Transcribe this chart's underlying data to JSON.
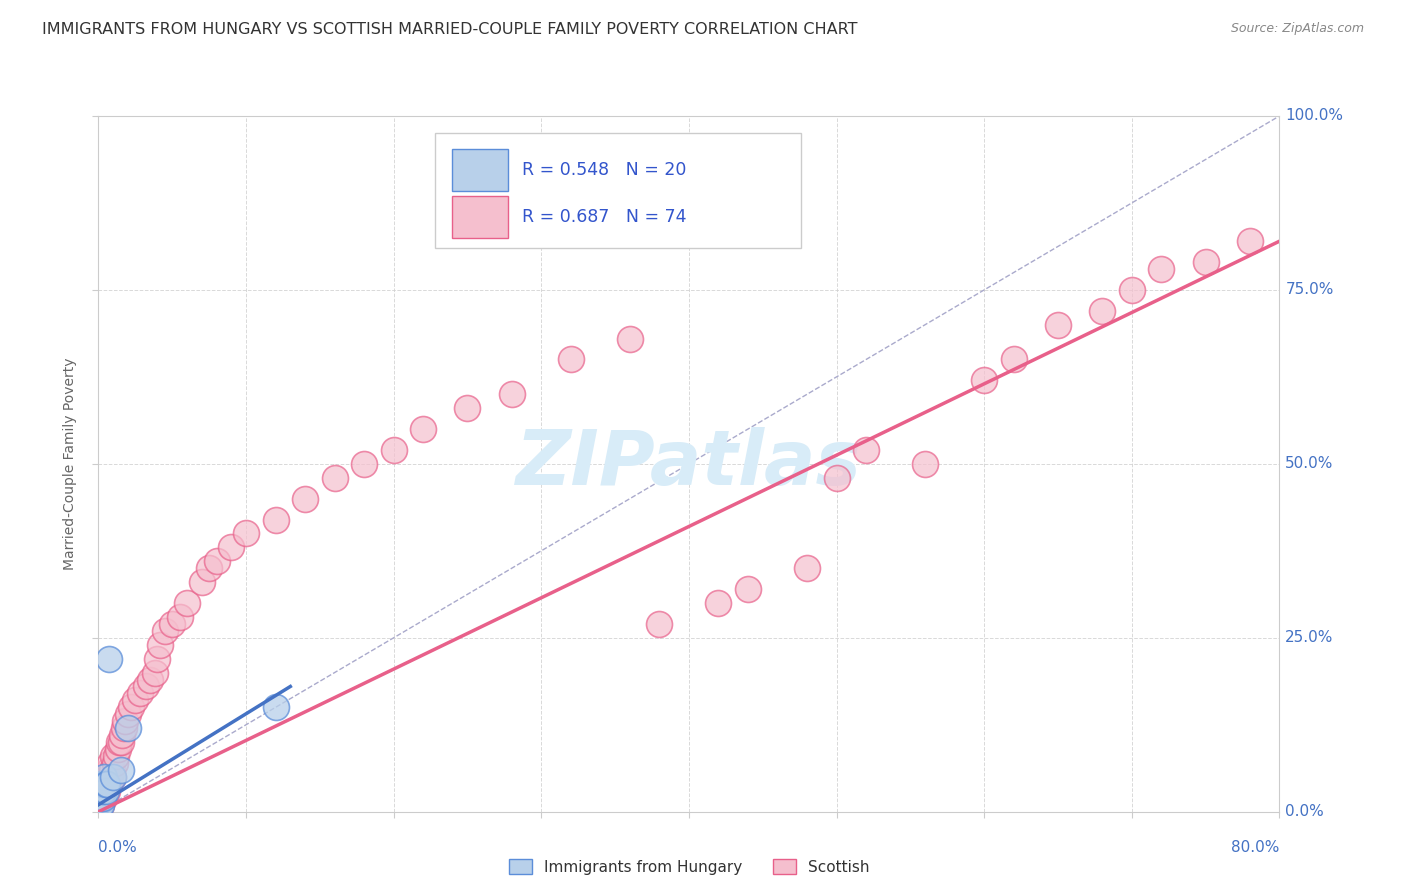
{
  "title": "IMMIGRANTS FROM HUNGARY VS SCOTTISH MARRIED-COUPLE FAMILY POVERTY CORRELATION CHART",
  "source": "Source: ZipAtlas.com",
  "ylabel_label": "Married-Couple Family Poverty",
  "legend_blue_r": "R = 0.548",
  "legend_blue_n": "N = 20",
  "legend_pink_r": "R = 0.687",
  "legend_pink_n": "N = 74",
  "legend1_label": "Immigrants from Hungary",
  "legend2_label": "Scottish",
  "blue_fill_color": "#b8d0ea",
  "blue_edge_color": "#5b8dd9",
  "pink_fill_color": "#f5bfce",
  "pink_edge_color": "#e8608a",
  "blue_line_color": "#4472c4",
  "pink_line_color": "#e8608a",
  "legend_text_color": "#3355cc",
  "title_color": "#333333",
  "grid_color": "#d0d0d0",
  "right_axis_label_color": "#4472c4",
  "background_color": "#ffffff",
  "watermark_color": "#d8ecf8",
  "blue_scatter_x": [
    0.001,
    0.001,
    0.001,
    0.001,
    0.002,
    0.002,
    0.002,
    0.002,
    0.003,
    0.003,
    0.003,
    0.004,
    0.005,
    0.005,
    0.006,
    0.007,
    0.01,
    0.015,
    0.02,
    0.12
  ],
  "blue_scatter_y": [
    0.01,
    0.015,
    0.02,
    0.03,
    0.01,
    0.02,
    0.03,
    0.04,
    0.02,
    0.03,
    0.04,
    0.05,
    0.03,
    0.04,
    0.04,
    0.22,
    0.05,
    0.06,
    0.12,
    0.15
  ],
  "pink_scatter_x": [
    0.001,
    0.001,
    0.001,
    0.002,
    0.002,
    0.002,
    0.003,
    0.003,
    0.003,
    0.004,
    0.004,
    0.004,
    0.005,
    0.005,
    0.006,
    0.006,
    0.007,
    0.007,
    0.008,
    0.008,
    0.009,
    0.01,
    0.01,
    0.011,
    0.012,
    0.013,
    0.014,
    0.015,
    0.016,
    0.017,
    0.018,
    0.02,
    0.022,
    0.025,
    0.028,
    0.032,
    0.035,
    0.038,
    0.04,
    0.042,
    0.045,
    0.05,
    0.055,
    0.06,
    0.07,
    0.075,
    0.08,
    0.09,
    0.1,
    0.12,
    0.14,
    0.16,
    0.18,
    0.2,
    0.22,
    0.25,
    0.28,
    0.32,
    0.36,
    0.38,
    0.42,
    0.44,
    0.48,
    0.5,
    0.52,
    0.56,
    0.6,
    0.62,
    0.65,
    0.68,
    0.7,
    0.72,
    0.75,
    0.78
  ],
  "pink_scatter_y": [
    0.01,
    0.02,
    0.03,
    0.01,
    0.02,
    0.03,
    0.02,
    0.03,
    0.04,
    0.02,
    0.03,
    0.05,
    0.03,
    0.04,
    0.03,
    0.05,
    0.04,
    0.06,
    0.05,
    0.07,
    0.06,
    0.05,
    0.08,
    0.07,
    0.08,
    0.09,
    0.1,
    0.1,
    0.11,
    0.12,
    0.13,
    0.14,
    0.15,
    0.16,
    0.17,
    0.18,
    0.19,
    0.2,
    0.22,
    0.24,
    0.26,
    0.27,
    0.28,
    0.3,
    0.33,
    0.35,
    0.36,
    0.38,
    0.4,
    0.42,
    0.45,
    0.48,
    0.5,
    0.52,
    0.55,
    0.58,
    0.6,
    0.65,
    0.68,
    0.27,
    0.3,
    0.32,
    0.35,
    0.48,
    0.52,
    0.5,
    0.62,
    0.65,
    0.7,
    0.72,
    0.75,
    0.78,
    0.79,
    0.82
  ],
  "xlim": [
    0,
    0.8
  ],
  "ylim": [
    0,
    1.0
  ],
  "blue_line_x0": 0.0,
  "blue_line_x1": 0.13,
  "blue_line_y0": 0.01,
  "blue_line_y1": 0.18,
  "pink_line_x0": 0.0,
  "pink_line_x1": 0.8,
  "pink_line_y0": 0.0,
  "pink_line_y1": 0.82,
  "diag_line_x": [
    0.0,
    0.8
  ],
  "diag_line_y": [
    0.0,
    1.0
  ],
  "ytick_positions": [
    0,
    0.25,
    0.5,
    0.75,
    1.0
  ],
  "ytick_labels": [
    "0.0%",
    "25.0%",
    "50.0%",
    "75.0%",
    "100.0%"
  ],
  "xtick_left_label": "0.0%",
  "xtick_right_label": "80.0%"
}
